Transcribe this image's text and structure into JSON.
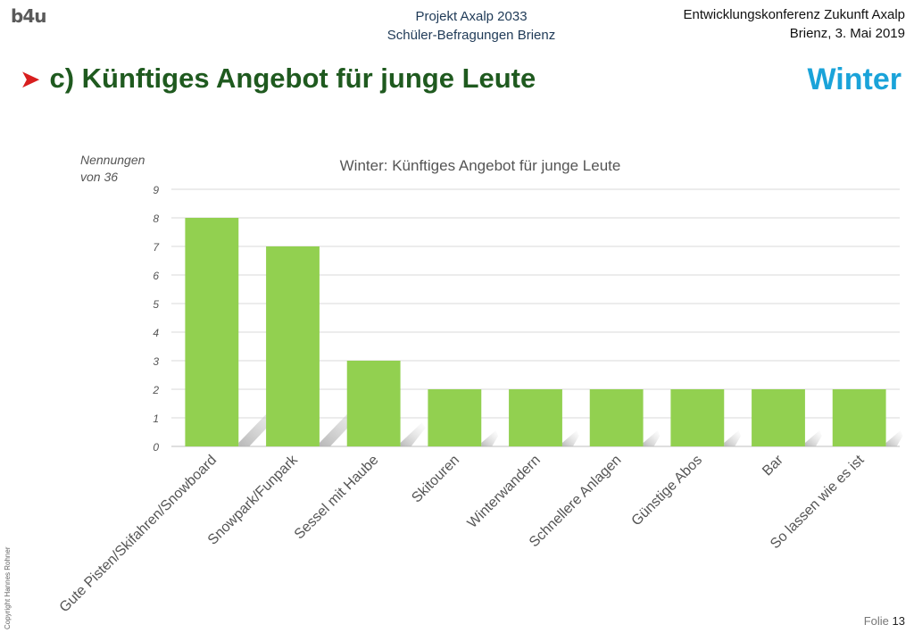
{
  "header": {
    "logo": "b4u",
    "project_line1": "Projekt Axalp 2033",
    "project_line2": "Schüler-Befragungen Brienz",
    "event_line1": "Entwicklungskonferenz Zukunft Axalp",
    "event_line2": "Brienz, 3. Mai 2019"
  },
  "slide": {
    "heading": "c) Künftiges Angebot für junge Leute",
    "season": "Winter",
    "unit_line1": "Nennungen",
    "unit_line2": "von 36"
  },
  "footer": {
    "copyright": "Copyright Hannes Rohner",
    "slide_label": "Folie",
    "slide_number": "13"
  },
  "colors": {
    "bar": "#92d050",
    "heading": "#1f5a1f",
    "season": "#1aa3d9",
    "arrow": "#d81e1e"
  },
  "chart_data": {
    "type": "bar",
    "title": "Winter: Künftiges Angebot für junge Leute",
    "categories": [
      "Gute Pisten/Skifahren/Snowboard",
      "Snowpark/Funpark",
      "Sessel mit Haube",
      "Skitouren",
      "Winterwandern",
      "Schnellere Anlagen",
      "Günstige Abos",
      "Bar",
      "So lassen wie es ist"
    ],
    "values": [
      8,
      7,
      3,
      2,
      2,
      2,
      2,
      2,
      2
    ],
    "yticks": [
      "0",
      "1",
      "2",
      "3",
      "4",
      "5",
      "6",
      "7",
      "8",
      "9"
    ],
    "ylim": [
      0,
      9
    ],
    "grid": true,
    "legend": "none"
  }
}
